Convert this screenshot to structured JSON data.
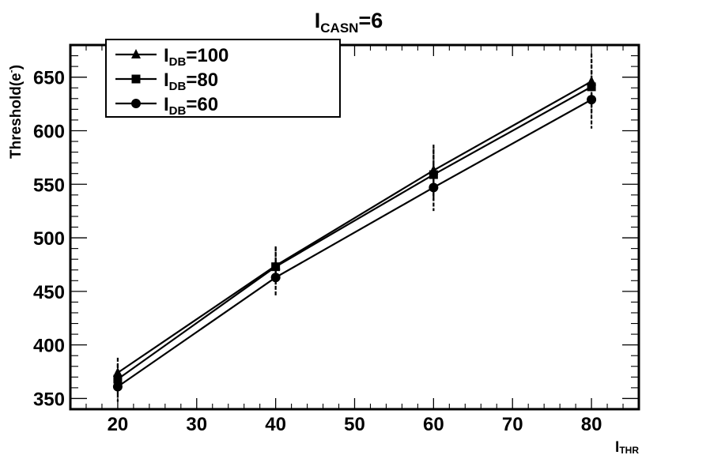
{
  "chart_data": {
    "type": "line",
    "title": {
      "main": "I",
      "sub": "CASN",
      "suffix": "=6"
    },
    "xlabel": {
      "main": "I",
      "sub": "THR"
    },
    "ylabel": "Threshold(e",
    "ylabel_sup": "-",
    "ylabel_close": ")",
    "xlim": [
      14,
      86
    ],
    "ylim": [
      340,
      680
    ],
    "x_ticks": [
      20,
      30,
      40,
      50,
      60,
      70,
      80
    ],
    "y_ticks": [
      350,
      400,
      450,
      500,
      550,
      600,
      650
    ],
    "x_minor_step": 2,
    "y_minor_step": 10,
    "grid": false,
    "legend_position": "top-left",
    "x": [
      20,
      40,
      60,
      80
    ],
    "series": [
      {
        "name": {
          "main": "I",
          "sub": "DB",
          "suffix": "=100"
        },
        "marker": "triangle",
        "values": [
          374,
          474,
          563,
          646
        ],
        "errors": [
          14,
          18,
          24,
          26
        ]
      },
      {
        "name": {
          "main": "I",
          "sub": "DB",
          "suffix": "=80"
        },
        "marker": "square",
        "values": [
          368,
          473,
          559,
          641
        ],
        "errors": [
          14,
          18,
          24,
          26
        ]
      },
      {
        "name": {
          "main": "I",
          "sub": "DB",
          "suffix": "=60"
        },
        "marker": "circle",
        "values": [
          361,
          463,
          547,
          629
        ],
        "errors": [
          14,
          18,
          22,
          27
        ]
      }
    ],
    "color": "#000000"
  }
}
